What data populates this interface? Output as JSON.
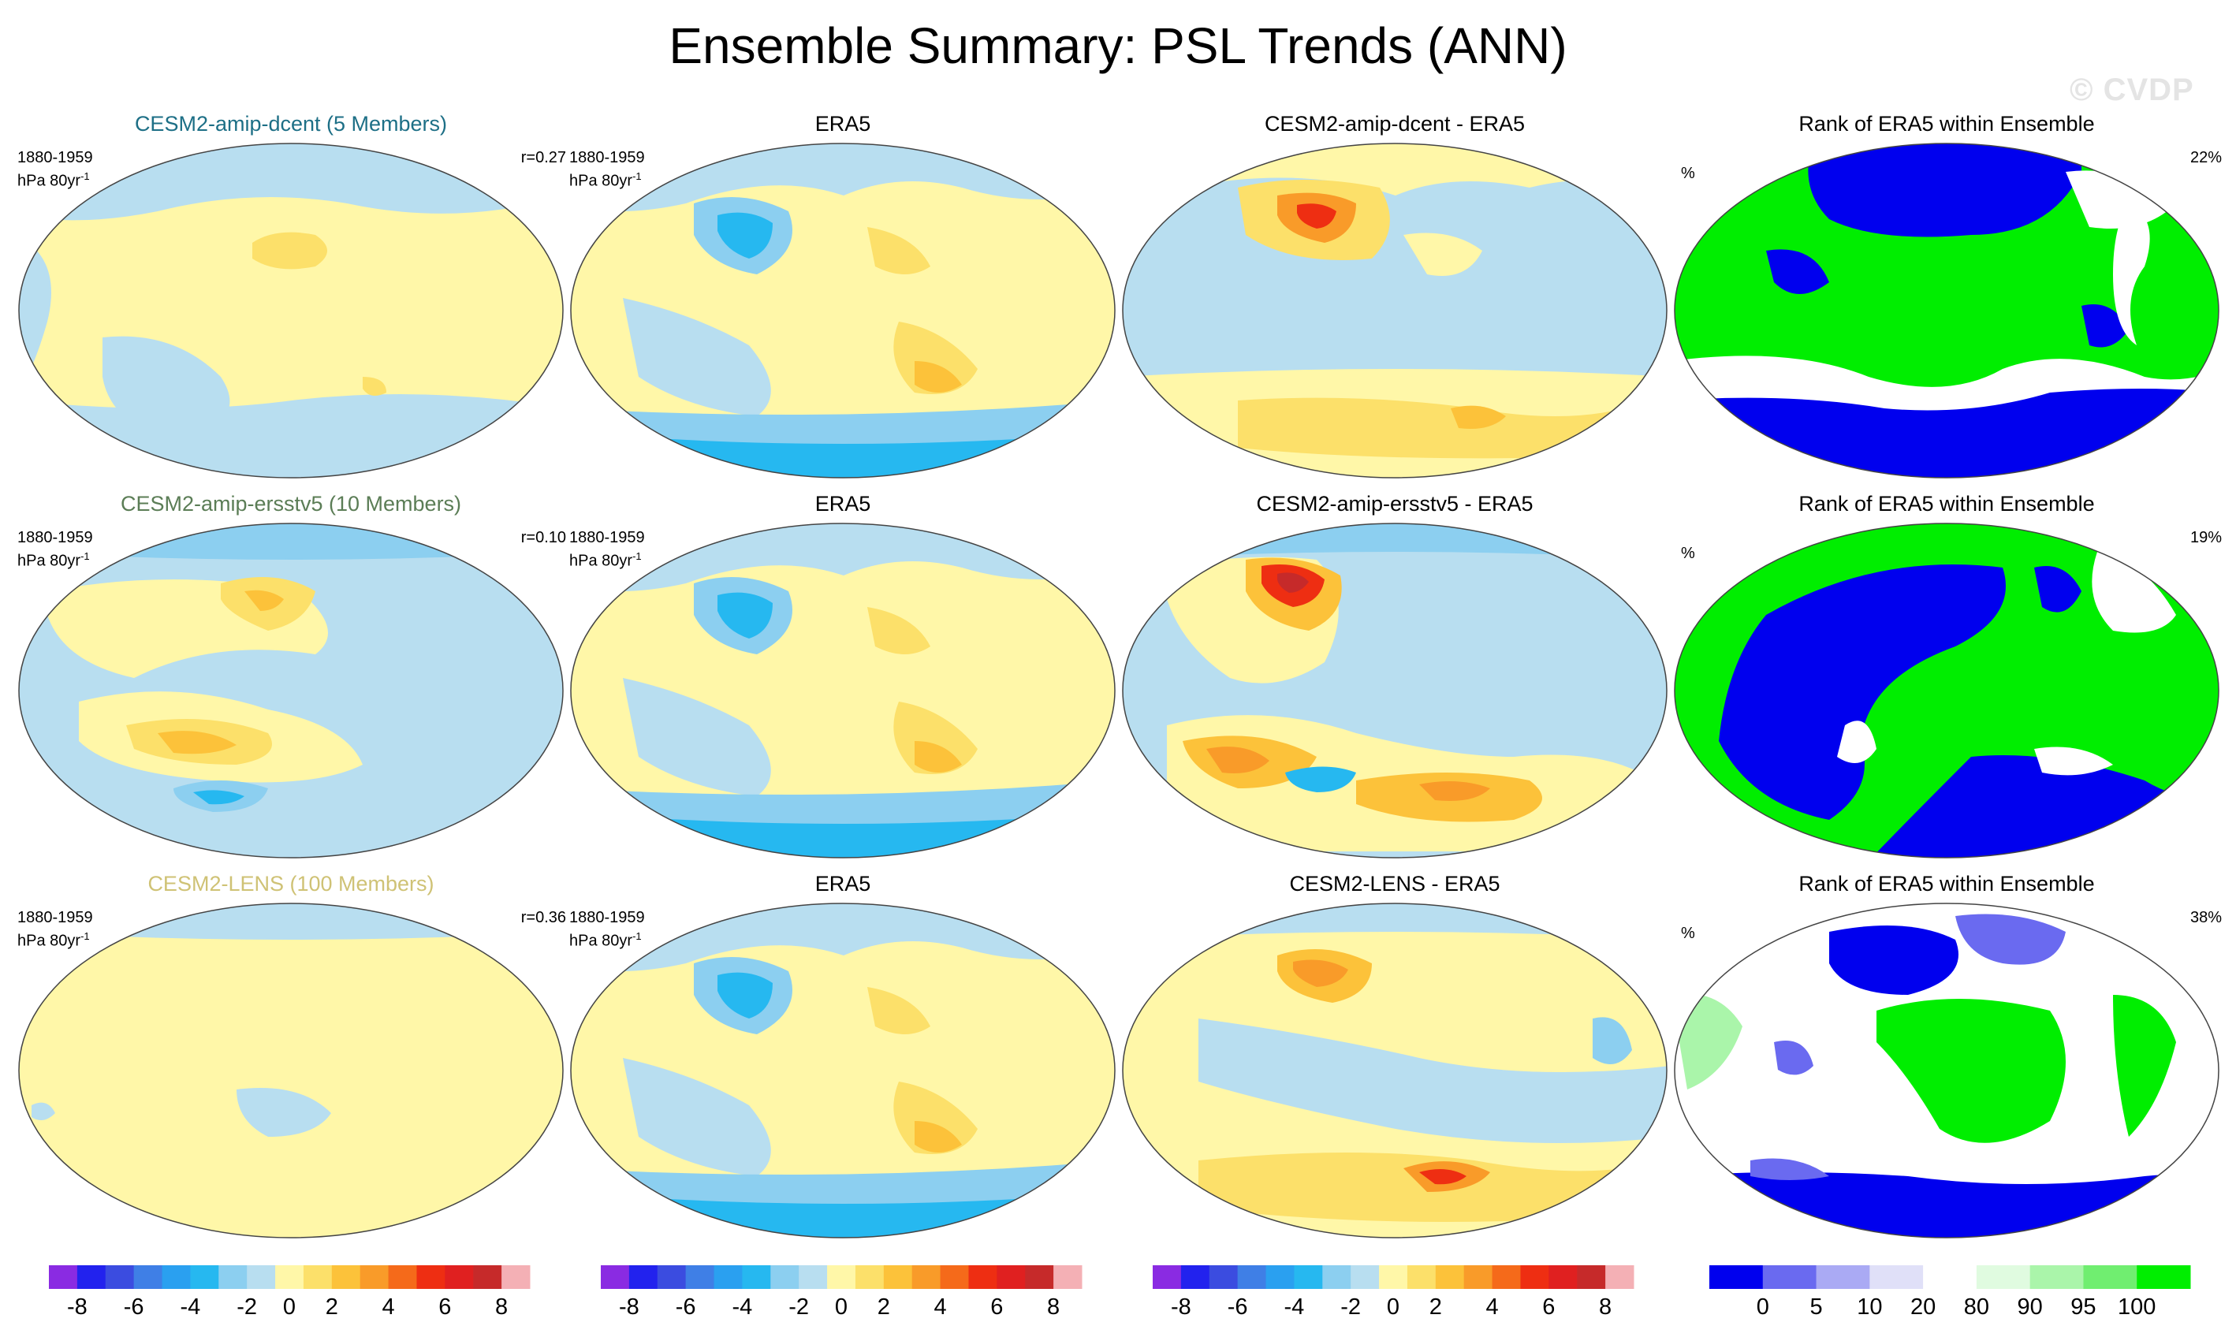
{
  "title": "Ensemble Summary: PSL Trends (ANN)",
  "watermark": "© CVDP",
  "rows": [
    {
      "model": {
        "title": "CESM2-amip-dcent (5 Members)",
        "title_color": "#1d6f86",
        "period": "1880-1959",
        "units": "hPa 80yr",
        "units_exp": "-1",
        "r": "r=0.27"
      },
      "obs": {
        "title": "ERA5",
        "period": "1880-1959",
        "units": "hPa 80yr",
        "units_exp": "-1"
      },
      "diff": {
        "title": "CESM2-amip-dcent - ERA5"
      },
      "rank": {
        "title": "Rank of ERA5 within Ensemble",
        "unit": "%",
        "pct": "22%"
      }
    },
    {
      "model": {
        "title": "CESM2-amip-ersstv5 (10 Members)",
        "title_color": "#5b7d56",
        "period": "1880-1959",
        "units": "hPa 80yr",
        "units_exp": "-1",
        "r": "r=0.10"
      },
      "obs": {
        "title": "ERA5",
        "period": "1880-1959",
        "units": "hPa 80yr",
        "units_exp": "-1"
      },
      "diff": {
        "title": "CESM2-amip-ersstv5 - ERA5"
      },
      "rank": {
        "title": "Rank of ERA5 within Ensemble",
        "unit": "%",
        "pct": "19%"
      }
    },
    {
      "model": {
        "title": "CESM2-LENS (100 Members)",
        "title_color": "#cfc275",
        "period": "1880-1959",
        "units": "hPa 80yr",
        "units_exp": "-1",
        "r": "r=0.36"
      },
      "obs": {
        "title": "ERA5",
        "period": "1880-1959",
        "units": "hPa 80yr",
        "units_exp": "-1"
      },
      "diff": {
        "title": "CESM2-LENS - ERA5"
      },
      "rank": {
        "title": "Rank of ERA5 within Ensemble",
        "unit": "%",
        "pct": "38%"
      }
    }
  ],
  "chart_data": {
    "type": "heatmap",
    "variable": "PSL trend",
    "season": "ANN",
    "trend_colorbar": {
      "labels": [
        "-8",
        "-6",
        "-4",
        "-2",
        "0",
        "2",
        "4",
        "6",
        "8"
      ],
      "colors": [
        "#8a2be2",
        "#2222ee",
        "#3b4ce0",
        "#3f7fe6",
        "#2aa0f0",
        "#26b8f0",
        "#8ccff0",
        "#b8def0",
        "#fff7a8",
        "#fce06a",
        "#fcc23a",
        "#f99b29",
        "#f56a1a",
        "#ee2e12",
        "#e02020",
        "#c62a2a",
        "#f4b0b5"
      ]
    },
    "rank_colorbar": {
      "labels": [
        "0",
        "5",
        "10",
        "20",
        "80",
        "90",
        "95",
        "100"
      ],
      "colors": [
        "#0000ee",
        "#6a6af0",
        "#aaaaf4",
        "#e0e0f8",
        "#ffffff",
        "#e0fbe0",
        "#aaf5aa",
        "#70ee70",
        "#00ee00"
      ]
    },
    "panels": [
      {
        "row": 1,
        "col": "model",
        "title": "CESM2-amip-dcent (5 Members)",
        "pattern_correlation": 0.27
      },
      {
        "row": 1,
        "col": "obs",
        "title": "ERA5"
      },
      {
        "row": 1,
        "col": "diff",
        "title": "CESM2-amip-dcent - ERA5"
      },
      {
        "row": 1,
        "col": "rank",
        "title": "Rank of ERA5 within Ensemble",
        "percent": 22
      },
      {
        "row": 2,
        "col": "model",
        "title": "CESM2-amip-ersstv5 (10 Members)",
        "pattern_correlation": 0.1
      },
      {
        "row": 2,
        "col": "obs",
        "title": "ERA5"
      },
      {
        "row": 2,
        "col": "diff",
        "title": "CESM2-amip-ersstv5 - ERA5"
      },
      {
        "row": 2,
        "col": "rank",
        "title": "Rank of ERA5 within Ensemble",
        "percent": 19
      },
      {
        "row": 3,
        "col": "model",
        "title": "CESM2-LENS (100 Members)",
        "pattern_correlation": 0.36
      },
      {
        "row": 3,
        "col": "obs",
        "title": "ERA5"
      },
      {
        "row": 3,
        "col": "diff",
        "title": "CESM2-LENS - ERA5"
      },
      {
        "row": 3,
        "col": "rank",
        "title": "Rank of ERA5 within Ensemble",
        "percent": 38
      }
    ]
  }
}
